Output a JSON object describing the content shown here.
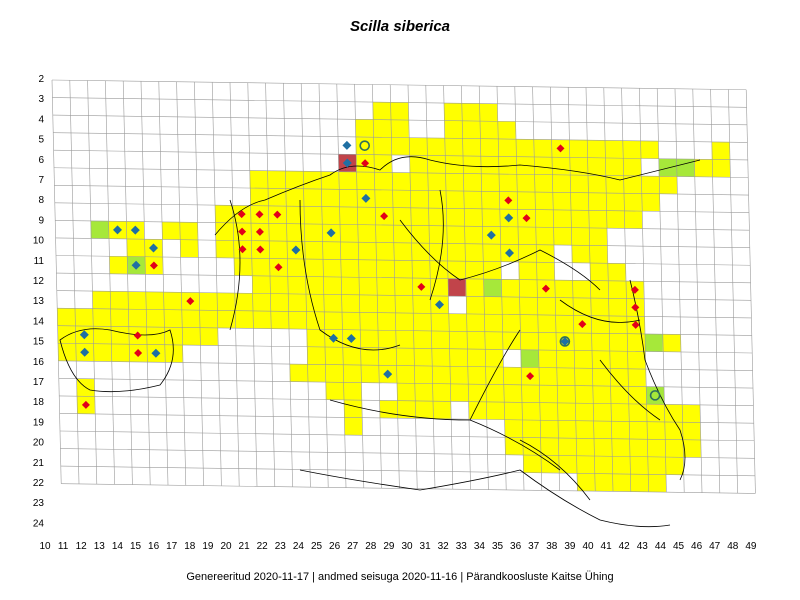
{
  "title": "Scilla siberica",
  "footer": "Genereeritud 2020-11-17  |  andmed seisuga 2020-11-16  |  Pärandkoosluste Kaitse Ühing",
  "colors": {
    "present": "#ffff00",
    "light": "#a6e83a",
    "dark": "#c1444a",
    "grid": "#9a9a9a",
    "red_marker": "#e2001a",
    "blue_marker": "#1f6fa3",
    "ring_marker": "#2e6f5c"
  },
  "axes": {
    "x_ticks": [
      "10",
      "11",
      "12",
      "13",
      "14",
      "15",
      "16",
      "17",
      "18",
      "19",
      "20",
      "21",
      "22",
      "23",
      "24",
      "25",
      "26",
      "27",
      "28",
      "29",
      "30",
      "31",
      "32",
      "33",
      "34",
      "35",
      "36",
      "37",
      "38",
      "39",
      "40",
      "41",
      "42",
      "43",
      "44",
      "45",
      "46",
      "47",
      "48",
      "49"
    ],
    "y_ticks": [
      "2",
      "3",
      "4",
      "5",
      "6",
      "7",
      "8",
      "9",
      "10",
      "11",
      "12",
      "13",
      "14",
      "15",
      "16",
      "17",
      "18",
      "19",
      "20",
      "21",
      "22",
      "23",
      "24"
    ]
  },
  "filled_cells": [
    [
      29,
      3
    ],
    [
      30,
      3
    ],
    [
      33,
      3
    ],
    [
      34,
      3
    ],
    [
      35,
      3
    ],
    [
      28,
      4
    ],
    [
      29,
      4
    ],
    [
      30,
      4
    ],
    [
      33,
      4
    ],
    [
      34,
      4
    ],
    [
      35,
      4
    ],
    [
      36,
      4
    ],
    [
      28,
      5
    ],
    [
      29,
      5
    ],
    [
      30,
      5
    ],
    [
      31,
      5
    ],
    [
      32,
      5
    ],
    [
      33,
      5
    ],
    [
      34,
      5
    ],
    [
      35,
      5
    ],
    [
      36,
      5
    ],
    [
      37,
      5
    ],
    [
      38,
      5
    ],
    [
      39,
      5
    ],
    [
      40,
      5
    ],
    [
      41,
      5
    ],
    [
      42,
      5
    ],
    [
      43,
      5
    ],
    [
      44,
      5
    ],
    [
      48,
      5
    ],
    [
      27,
      6
    ],
    [
      28,
      6
    ],
    [
      29,
      6
    ],
    [
      31,
      6
    ],
    [
      32,
      6
    ],
    [
      33,
      6
    ],
    [
      34,
      6
    ],
    [
      35,
      6
    ],
    [
      36,
      6
    ],
    [
      37,
      6
    ],
    [
      38,
      6
    ],
    [
      39,
      6
    ],
    [
      40,
      6
    ],
    [
      41,
      6
    ],
    [
      42,
      6
    ],
    [
      43,
      6
    ],
    [
      45,
      6
    ],
    [
      46,
      6
    ],
    [
      47,
      6
    ],
    [
      48,
      6
    ],
    [
      22,
      7
    ],
    [
      23,
      7
    ],
    [
      24,
      7
    ],
    [
      25,
      7
    ],
    [
      26,
      7
    ],
    [
      27,
      7
    ],
    [
      28,
      7
    ],
    [
      29,
      7
    ],
    [
      30,
      7
    ],
    [
      31,
      7
    ],
    [
      32,
      7
    ],
    [
      33,
      7
    ],
    [
      34,
      7
    ],
    [
      35,
      7
    ],
    [
      36,
      7
    ],
    [
      37,
      7
    ],
    [
      38,
      7
    ],
    [
      39,
      7
    ],
    [
      40,
      7
    ],
    [
      41,
      7
    ],
    [
      42,
      7
    ],
    [
      43,
      7
    ],
    [
      44,
      7
    ],
    [
      45,
      7
    ],
    [
      22,
      8
    ],
    [
      23,
      8
    ],
    [
      24,
      8
    ],
    [
      25,
      8
    ],
    [
      26,
      8
    ],
    [
      27,
      8
    ],
    [
      28,
      8
    ],
    [
      29,
      8
    ],
    [
      30,
      8
    ],
    [
      31,
      8
    ],
    [
      32,
      8
    ],
    [
      33,
      8
    ],
    [
      34,
      8
    ],
    [
      35,
      8
    ],
    [
      36,
      8
    ],
    [
      37,
      8
    ],
    [
      38,
      8
    ],
    [
      39,
      8
    ],
    [
      40,
      8
    ],
    [
      41,
      8
    ],
    [
      42,
      8
    ],
    [
      43,
      8
    ],
    [
      44,
      8
    ],
    [
      20,
      9
    ],
    [
      21,
      9
    ],
    [
      22,
      9
    ],
    [
      23,
      9
    ],
    [
      24,
      9
    ],
    [
      25,
      9
    ],
    [
      26,
      9
    ],
    [
      27,
      9
    ],
    [
      28,
      9
    ],
    [
      29,
      9
    ],
    [
      30,
      9
    ],
    [
      31,
      9
    ],
    [
      32,
      9
    ],
    [
      33,
      9
    ],
    [
      34,
      9
    ],
    [
      35,
      9
    ],
    [
      36,
      9
    ],
    [
      37,
      9
    ],
    [
      38,
      9
    ],
    [
      39,
      9
    ],
    [
      40,
      9
    ],
    [
      41,
      9
    ],
    [
      42,
      9
    ],
    [
      43,
      9
    ],
    [
      13,
      10
    ],
    [
      14,
      10
    ],
    [
      15,
      10
    ],
    [
      17,
      10
    ],
    [
      18,
      10
    ],
    [
      20,
      10
    ],
    [
      21,
      10
    ],
    [
      22,
      10
    ],
    [
      23,
      10
    ],
    [
      24,
      10
    ],
    [
      25,
      10
    ],
    [
      26,
      10
    ],
    [
      27,
      10
    ],
    [
      28,
      10
    ],
    [
      29,
      10
    ],
    [
      30,
      10
    ],
    [
      31,
      10
    ],
    [
      32,
      10
    ],
    [
      33,
      10
    ],
    [
      34,
      10
    ],
    [
      35,
      10
    ],
    [
      36,
      10
    ],
    [
      37,
      10
    ],
    [
      38,
      10
    ],
    [
      39,
      10
    ],
    [
      40,
      10
    ],
    [
      41,
      10
    ],
    [
      15,
      11
    ],
    [
      16,
      11
    ],
    [
      18,
      11
    ],
    [
      20,
      11
    ],
    [
      21,
      11
    ],
    [
      22,
      11
    ],
    [
      23,
      11
    ],
    [
      24,
      11
    ],
    [
      25,
      11
    ],
    [
      26,
      11
    ],
    [
      27,
      11
    ],
    [
      28,
      11
    ],
    [
      29,
      11
    ],
    [
      30,
      11
    ],
    [
      31,
      11
    ],
    [
      32,
      11
    ],
    [
      33,
      11
    ],
    [
      34,
      11
    ],
    [
      35,
      11
    ],
    [
      36,
      11
    ],
    [
      37,
      11
    ],
    [
      38,
      11
    ],
    [
      40,
      11
    ],
    [
      41,
      11
    ],
    [
      14,
      12
    ],
    [
      15,
      12
    ],
    [
      16,
      12
    ],
    [
      21,
      12
    ],
    [
      22,
      12
    ],
    [
      23,
      12
    ],
    [
      24,
      12
    ],
    [
      25,
      12
    ],
    [
      26,
      12
    ],
    [
      27,
      12
    ],
    [
      28,
      12
    ],
    [
      29,
      12
    ],
    [
      30,
      12
    ],
    [
      31,
      12
    ],
    [
      32,
      12
    ],
    [
      33,
      12
    ],
    [
      34,
      12
    ],
    [
      35,
      12
    ],
    [
      37,
      12
    ],
    [
      38,
      12
    ],
    [
      41,
      12
    ],
    [
      42,
      12
    ],
    [
      22,
      13
    ],
    [
      23,
      13
    ],
    [
      24,
      13
    ],
    [
      25,
      13
    ],
    [
      26,
      13
    ],
    [
      27,
      13
    ],
    [
      28,
      13
    ],
    [
      29,
      13
    ],
    [
      30,
      13
    ],
    [
      31,
      13
    ],
    [
      32,
      13
    ],
    [
      33,
      13
    ],
    [
      34,
      13
    ],
    [
      35,
      13
    ],
    [
      36,
      13
    ],
    [
      37,
      13
    ],
    [
      38,
      13
    ],
    [
      39,
      13
    ],
    [
      40,
      13
    ],
    [
      41,
      13
    ],
    [
      42,
      13
    ],
    [
      43,
      13
    ],
    [
      13,
      14
    ],
    [
      14,
      14
    ],
    [
      15,
      14
    ],
    [
      16,
      14
    ],
    [
      17,
      14
    ],
    [
      18,
      14
    ],
    [
      19,
      14
    ],
    [
      20,
      14
    ],
    [
      21,
      14
    ],
    [
      22,
      14
    ],
    [
      23,
      14
    ],
    [
      24,
      14
    ],
    [
      25,
      14
    ],
    [
      26,
      14
    ],
    [
      27,
      14
    ],
    [
      28,
      14
    ],
    [
      29,
      14
    ],
    [
      30,
      14
    ],
    [
      31,
      14
    ],
    [
      32,
      14
    ],
    [
      34,
      14
    ],
    [
      35,
      14
    ],
    [
      36,
      14
    ],
    [
      37,
      14
    ],
    [
      38,
      14
    ],
    [
      39,
      14
    ],
    [
      40,
      14
    ],
    [
      41,
      14
    ],
    [
      42,
      14
    ],
    [
      43,
      14
    ],
    [
      11,
      15
    ],
    [
      12,
      15
    ],
    [
      13,
      15
    ],
    [
      14,
      15
    ],
    [
      15,
      15
    ],
    [
      16,
      15
    ],
    [
      17,
      15
    ],
    [
      18,
      15
    ],
    [
      19,
      15
    ],
    [
      20,
      15
    ],
    [
      21,
      15
    ],
    [
      22,
      15
    ],
    [
      23,
      15
    ],
    [
      24,
      15
    ],
    [
      25,
      15
    ],
    [
      26,
      15
    ],
    [
      27,
      15
    ],
    [
      28,
      15
    ],
    [
      29,
      15
    ],
    [
      30,
      15
    ],
    [
      31,
      15
    ],
    [
      32,
      15
    ],
    [
      33,
      15
    ],
    [
      34,
      15
    ],
    [
      35,
      15
    ],
    [
      36,
      15
    ],
    [
      37,
      15
    ],
    [
      38,
      15
    ],
    [
      39,
      15
    ],
    [
      40,
      15
    ],
    [
      41,
      15
    ],
    [
      42,
      15
    ],
    [
      43,
      15
    ],
    [
      11,
      16
    ],
    [
      12,
      16
    ],
    [
      13,
      16
    ],
    [
      14,
      16
    ],
    [
      15,
      16
    ],
    [
      16,
      16
    ],
    [
      17,
      16
    ],
    [
      18,
      16
    ],
    [
      19,
      16
    ],
    [
      25,
      16
    ],
    [
      26,
      16
    ],
    [
      27,
      16
    ],
    [
      28,
      16
    ],
    [
      29,
      16
    ],
    [
      30,
      16
    ],
    [
      31,
      16
    ],
    [
      32,
      16
    ],
    [
      33,
      16
    ],
    [
      34,
      16
    ],
    [
      35,
      16
    ],
    [
      36,
      16
    ],
    [
      37,
      16
    ],
    [
      38,
      16
    ],
    [
      39,
      16
    ],
    [
      40,
      16
    ],
    [
      41,
      16
    ],
    [
      42,
      16
    ],
    [
      43,
      16
    ],
    [
      44,
      16
    ],
    [
      45,
      16
    ],
    [
      11,
      17
    ],
    [
      12,
      17
    ],
    [
      13,
      17
    ],
    [
      14,
      17
    ],
    [
      15,
      17
    ],
    [
      16,
      17
    ],
    [
      17,
      17
    ],
    [
      25,
      17
    ],
    [
      26,
      17
    ],
    [
      27,
      17
    ],
    [
      28,
      17
    ],
    [
      29,
      17
    ],
    [
      30,
      17
    ],
    [
      31,
      17
    ],
    [
      32,
      17
    ],
    [
      33,
      17
    ],
    [
      34,
      17
    ],
    [
      35,
      17
    ],
    [
      37,
      17
    ],
    [
      38,
      17
    ],
    [
      39,
      17
    ],
    [
      40,
      17
    ],
    [
      41,
      17
    ],
    [
      42,
      17
    ],
    [
      43,
      17
    ],
    [
      24,
      18
    ],
    [
      25,
      18
    ],
    [
      26,
      18
    ],
    [
      27,
      18
    ],
    [
      28,
      18
    ],
    [
      29,
      18
    ],
    [
      30,
      18
    ],
    [
      31,
      18
    ],
    [
      32,
      18
    ],
    [
      33,
      18
    ],
    [
      34,
      18
    ],
    [
      35,
      18
    ],
    [
      36,
      18
    ],
    [
      37,
      18
    ],
    [
      38,
      18
    ],
    [
      39,
      18
    ],
    [
      40,
      18
    ],
    [
      41,
      18
    ],
    [
      42,
      18
    ],
    [
      43,
      18
    ],
    [
      12,
      19
    ],
    [
      26,
      19
    ],
    [
      27,
      19
    ],
    [
      30,
      19
    ],
    [
      31,
      19
    ],
    [
      32,
      19
    ],
    [
      33,
      19
    ],
    [
      34,
      19
    ],
    [
      35,
      19
    ],
    [
      36,
      19
    ],
    [
      37,
      19
    ],
    [
      38,
      19
    ],
    [
      39,
      19
    ],
    [
      40,
      19
    ],
    [
      41,
      19
    ],
    [
      42,
      19
    ],
    [
      43,
      19
    ],
    [
      44,
      19
    ],
    [
      12,
      20
    ],
    [
      27,
      20
    ],
    [
      29,
      20
    ],
    [
      30,
      20
    ],
    [
      31,
      20
    ],
    [
      32,
      20
    ],
    [
      34,
      20
    ],
    [
      35,
      20
    ],
    [
      36,
      20
    ],
    [
      37,
      20
    ],
    [
      38,
      20
    ],
    [
      39,
      20
    ],
    [
      40,
      20
    ],
    [
      41,
      20
    ],
    [
      42,
      20
    ],
    [
      43,
      20
    ],
    [
      44,
      20
    ],
    [
      45,
      20
    ],
    [
      46,
      20
    ],
    [
      27,
      21
    ],
    [
      36,
      21
    ],
    [
      37,
      21
    ],
    [
      38,
      21
    ],
    [
      39,
      21
    ],
    [
      40,
      21
    ],
    [
      41,
      21
    ],
    [
      42,
      21
    ],
    [
      43,
      21
    ],
    [
      44,
      21
    ],
    [
      45,
      21
    ],
    [
      46,
      21
    ],
    [
      36,
      22
    ],
    [
      37,
      22
    ],
    [
      38,
      22
    ],
    [
      39,
      22
    ],
    [
      40,
      22
    ],
    [
      41,
      22
    ],
    [
      42,
      22
    ],
    [
      43,
      22
    ],
    [
      44,
      22
    ],
    [
      45,
      22
    ],
    [
      46,
      22
    ],
    [
      37,
      23
    ],
    [
      38,
      23
    ],
    [
      39,
      23
    ],
    [
      40,
      23
    ],
    [
      41,
      23
    ],
    [
      42,
      23
    ],
    [
      43,
      23
    ],
    [
      44,
      23
    ],
    [
      45,
      23
    ],
    [
      40,
      24
    ],
    [
      41,
      24
    ],
    [
      42,
      24
    ],
    [
      43,
      24
    ],
    [
      44,
      24
    ]
  ],
  "light_cells": [
    [
      13,
      10
    ],
    [
      15,
      12
    ],
    [
      45,
      6
    ],
    [
      46,
      6
    ],
    [
      35,
      13
    ],
    [
      36,
      17
    ],
    [
      37,
      17
    ],
    [
      44,
      16
    ],
    [
      44,
      19
    ]
  ],
  "dark_cells": [
    [
      27,
      6
    ],
    [
      33,
      13
    ]
  ],
  "red_markers": [
    [
      39,
      5
    ],
    [
      28,
      6
    ],
    [
      36,
      8
    ],
    [
      36,
      9
    ],
    [
      37,
      9
    ],
    [
      21,
      9
    ],
    [
      22,
      9
    ],
    [
      23,
      9
    ],
    [
      21,
      10
    ],
    [
      22,
      10
    ],
    [
      29,
      9
    ],
    [
      21,
      11
    ],
    [
      22,
      11
    ],
    [
      16,
      12
    ],
    [
      23,
      12
    ],
    [
      18,
      14
    ],
    [
      31,
      13
    ],
    [
      38,
      13
    ],
    [
      43,
      13
    ],
    [
      43,
      14
    ],
    [
      40,
      15
    ],
    [
      43,
      15
    ],
    [
      15,
      16
    ],
    [
      15,
      17
    ],
    [
      37,
      18
    ],
    [
      12,
      20
    ]
  ],
  "blue_markers": [
    [
      27,
      5
    ],
    [
      27,
      6
    ],
    [
      28,
      8
    ],
    [
      36,
      9
    ],
    [
      14,
      10
    ],
    [
      15,
      10
    ],
    [
      26,
      10
    ],
    [
      35,
      10
    ],
    [
      16,
      11
    ],
    [
      24,
      11
    ],
    [
      36,
      11
    ],
    [
      15,
      12
    ],
    [
      32,
      14
    ],
    [
      12,
      16
    ],
    [
      26,
      16
    ],
    [
      27,
      16
    ],
    [
      39,
      16
    ],
    [
      12,
      17
    ],
    [
      16,
      17
    ],
    [
      29,
      18
    ]
  ],
  "ring_markers": [
    [
      28,
      5
    ],
    [
      39,
      16
    ],
    [
      44,
      19
    ]
  ]
}
